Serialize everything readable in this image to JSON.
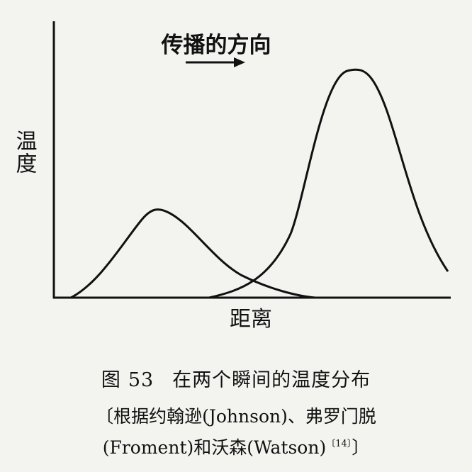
{
  "figure": {
    "direction_label": "传播的方向",
    "direction_arrow_icon": "right-arrow-icon",
    "y_axis_label": "温度",
    "x_axis_label": "距离"
  },
  "caption": {
    "label": "图",
    "number": "53",
    "title": "在两个瞬间的温度分布",
    "source_line1": "〔根据约翰逊(Johnson)、弗罗门脱",
    "source_line2": "(Froment)和沃森(Watson)",
    "reference": "〔14〕",
    "source_end": "〕"
  }
}
